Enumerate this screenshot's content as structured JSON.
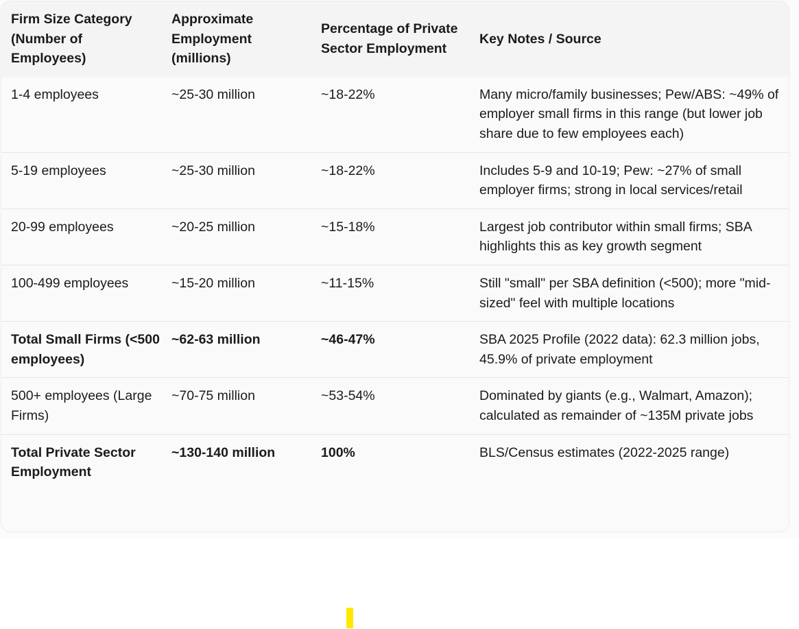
{
  "table": {
    "headers": [
      "Firm Size Category (Number of Employees)",
      "Approximate Employment (millions)",
      "Percentage of Private Sector Employment",
      "Key Notes / Source"
    ],
    "rows": [
      {
        "category": "1-4 employees",
        "employment": "~25-30 million",
        "percentage": "~18-22%",
        "notes": "Many micro/family businesses; Pew/ABS: ~49% of employer small firms in this range (but lower job share due to few employees each)"
      },
      {
        "category": "5-19 employees",
        "employment": "~25-30 million",
        "percentage": "~18-22%",
        "notes": "Includes 5-9 and 10-19; Pew: ~27% of small employer firms; strong in local services/retail"
      },
      {
        "category": "20-99 employees",
        "employment": "~20-25 million",
        "percentage": "~15-18%",
        "notes": "Largest job contributor within small firms; SBA highlights this as key growth segment"
      },
      {
        "category": "100-499 employees",
        "employment": "~15-20 million",
        "percentage": "~11-15%",
        "notes": "Still \"small\" per SBA definition (<500); more \"mid-sized\" feel with multiple locations"
      },
      {
        "category": "Total Small Firms (<500 employees)",
        "employment": "~62-63 million",
        "percentage": "~46-47%",
        "notes": "SBA 2025 Profile (2022 data): 62.3 million jobs, 45.9% of private employment"
      },
      {
        "category": "500+ employees (Large Firms)",
        "employment": "~70-75 million",
        "percentage": "~53-54%",
        "notes": "Dominated by giants (e.g., Walmart, Amazon); calculated as remainder of ~135M private jobs"
      },
      {
        "category": "Total Private Sector Employment",
        "employment": "~130-140 million",
        "percentage": "100%",
        "notes": "BLS/Census estimates (2022-2025 range)"
      }
    ]
  },
  "colors": {
    "header_bg": "#f4f4f4",
    "row_bg": "#fafafa",
    "divider": "#e6e6e6",
    "cursor": "#ffe800"
  }
}
